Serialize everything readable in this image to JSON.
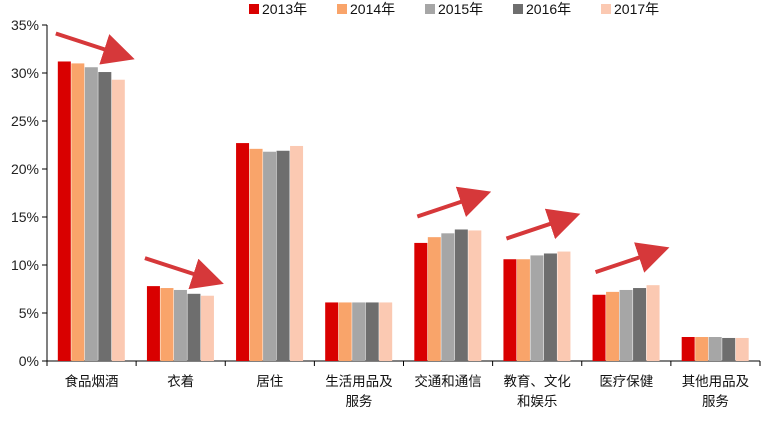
{
  "chart_data": {
    "type": "bar",
    "ylim": [
      0,
      35
    ],
    "yticks": [
      "0%",
      "5%",
      "10%",
      "15%",
      "20%",
      "25%",
      "30%",
      "35%"
    ],
    "ytick_values": [
      0,
      5,
      10,
      15,
      20,
      25,
      30,
      35
    ],
    "grid": false,
    "legend_position": "top-right",
    "categories": [
      [
        "食品烟酒"
      ],
      [
        "衣着"
      ],
      [
        "居住"
      ],
      [
        "生活用品及",
        "服务"
      ],
      [
        "交通和通信"
      ],
      [
        "教育、文化",
        "和娱乐"
      ],
      [
        "医疗保健"
      ],
      [
        "其他用品及",
        "服务"
      ]
    ],
    "series": [
      {
        "name": "2013年",
        "color": "#d90000",
        "values": [
          31.2,
          7.8,
          22.7,
          6.1,
          12.3,
          10.6,
          6.9,
          2.5
        ]
      },
      {
        "name": "2014年",
        "color": "#f9a46a",
        "values": [
          31.0,
          7.6,
          22.1,
          6.1,
          12.9,
          10.6,
          7.2,
          2.5
        ]
      },
      {
        "name": "2015年",
        "color": "#a6a6a6",
        "values": [
          30.6,
          7.4,
          21.8,
          6.1,
          13.3,
          11.0,
          7.4,
          2.5
        ]
      },
      {
        "name": "2016年",
        "color": "#6e6e6e",
        "values": [
          30.1,
          7.0,
          21.9,
          6.1,
          13.7,
          11.2,
          7.6,
          2.4
        ]
      },
      {
        "name": "2017年",
        "color": "#fbc9b2",
        "values": [
          29.3,
          6.8,
          22.4,
          6.1,
          13.6,
          11.4,
          7.9,
          2.4
        ]
      }
    ],
    "annotations": [
      {
        "type": "arrow",
        "color": "#d6383a",
        "category_index": 0,
        "direction": "down"
      },
      {
        "type": "arrow",
        "color": "#d6383a",
        "category_index": 1,
        "direction": "down"
      },
      {
        "type": "arrow",
        "color": "#d6383a",
        "category_index": 4,
        "direction": "up"
      },
      {
        "type": "arrow",
        "color": "#d6383a",
        "category_index": 5,
        "direction": "up"
      },
      {
        "type": "arrow",
        "color": "#d6383a",
        "category_index": 6,
        "direction": "up"
      }
    ]
  }
}
